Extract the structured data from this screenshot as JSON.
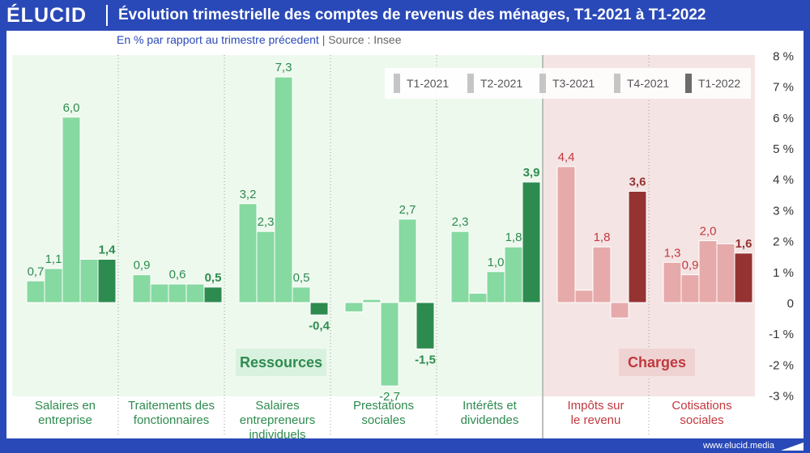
{
  "header": {
    "logo_text": "ÉLUCID",
    "title": "Évolution trimestrielle des comptes de revenus des ménages, T1-2021 à T1-2022",
    "subtitle_main": "En % par rapport au trimestre précedent",
    "subtitle_sep": "|",
    "subtitle_source": "Source : Insee"
  },
  "footer": {
    "url": "www.elucid.media"
  },
  "colors": {
    "brand": "#2a49b8",
    "resources_bg": "#eef9ee",
    "resources_bar": "#86d9a0",
    "resources_bar_last": "#2e8b4f",
    "resources_label": "#2e8b4f",
    "charges_bg": "#f5e4e4",
    "charges_bar": "#e6aaaa",
    "charges_bar_last": "#953333",
    "charges_label": "#c0393f"
  },
  "chart_data": {
    "type": "bar",
    "ylim": [
      -3,
      8
    ],
    "yticks": [
      "-3 %",
      "-2 %",
      "-1 %",
      "0",
      "1 %",
      "2 %",
      "3 %",
      "4 %",
      "5 %",
      "6 %",
      "7 %",
      "8 %"
    ],
    "legend_position": "top-right",
    "series_names": [
      "T1-2021",
      "T2-2021",
      "T3-2021",
      "T4-2021",
      "T1-2022"
    ],
    "group_labels": {
      "resources": "Ressources",
      "charges": "Charges"
    },
    "categories": [
      {
        "label": [
          "Salaires en",
          "entreprise"
        ],
        "group": "resources",
        "values": [
          0.7,
          1.1,
          6.0,
          1.4,
          1.4
        ],
        "labels": [
          "0,7",
          "1,1",
          "6,0",
          "",
          "1,4"
        ]
      },
      {
        "label": [
          "Traitements des",
          "fonctionnaires"
        ],
        "group": "resources",
        "values": [
          0.9,
          0.6,
          0.6,
          0.6,
          0.5
        ],
        "labels": [
          "0,9",
          "",
          "0,6",
          "",
          "0,5"
        ]
      },
      {
        "label": [
          "Salaires",
          "entrepreneurs",
          "individuels"
        ],
        "group": "resources",
        "values": [
          3.2,
          2.3,
          7.3,
          0.5,
          -0.4
        ],
        "labels": [
          "3,2",
          "2,3",
          "7,3",
          "0,5",
          "-0,4"
        ]
      },
      {
        "label": [
          "Prestations",
          "sociales"
        ],
        "group": "resources",
        "values": [
          -0.3,
          0.1,
          -2.7,
          2.7,
          -1.5
        ],
        "labels": [
          "",
          "",
          "-2,7",
          "2,7",
          "-1,5"
        ]
      },
      {
        "label": [
          "Intérêts et",
          "dividendes"
        ],
        "group": "resources",
        "values": [
          2.3,
          0.3,
          1.0,
          1.8,
          3.9
        ],
        "labels": [
          "2,3",
          "",
          "1,0",
          "1,8",
          "3,9"
        ]
      },
      {
        "label": [
          "Impôts sur",
          "le revenu"
        ],
        "group": "charges",
        "values": [
          4.4,
          0.4,
          1.8,
          -0.5,
          3.6
        ],
        "labels": [
          "4,4",
          "",
          "1,8",
          "",
          "3,6"
        ]
      },
      {
        "label": [
          "Cotisations",
          "sociales"
        ],
        "group": "charges",
        "values": [
          1.3,
          0.9,
          2.0,
          1.9,
          1.6
        ],
        "labels": [
          "1,3",
          "0,9",
          "2,0",
          "",
          "1,6"
        ]
      }
    ]
  }
}
